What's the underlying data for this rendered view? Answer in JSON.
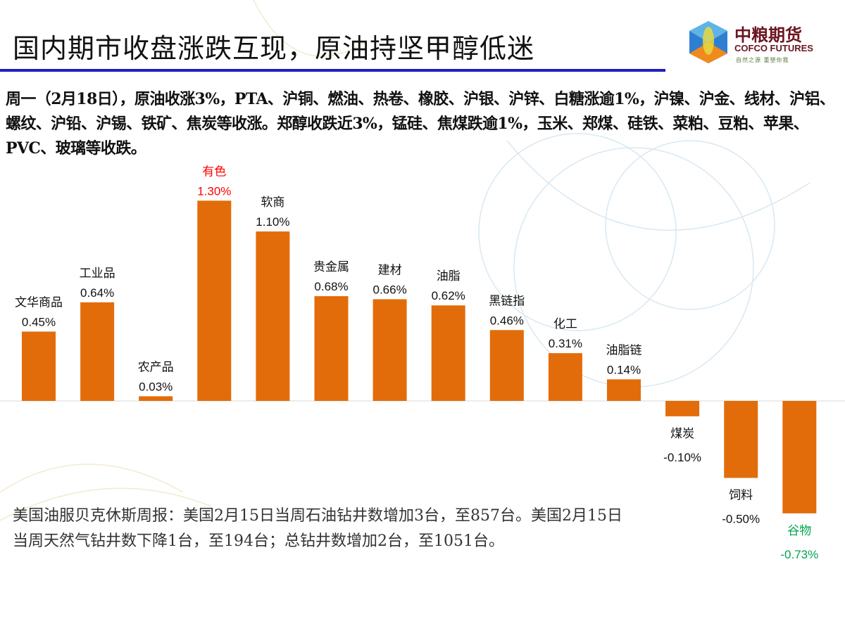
{
  "header": {
    "title": "国内期市收盘涨跌互现，原油持坚甲醇低迷",
    "logo_cn": "中粮期货",
    "logo_en": "COFCO FUTURES",
    "logo_slogan": "自然之源 重塑你我"
  },
  "summary": "周一（2月18日），原油收涨3%，PTA、沪铜、燃油、热卷、橡胶、沪银、沪锌、白糖涨逾1%，沪镍、沪金、线材、沪铝、螺纹、沪铅、沪锡、铁矿、焦炭等收涨。郑醇收跌近3%，锰硅、焦煤跌逾1%，玉米、郑煤、硅铁、菜粕、豆粕、苹果、PVC、玻璃等收跌。",
  "note": "美国油服贝克休斯周报：美国2月15日当周石油钻井数增加3台，至857台。美国2月15日当周天然气钻井数下降1台，至194台；总钻井数增加2台，至1051台。",
  "chart_data": {
    "type": "bar",
    "categories": [
      "文华商品",
      "工业品",
      "农产品",
      "有色",
      "软商",
      "贵金属",
      "建材",
      "油脂",
      "黑链指",
      "化工",
      "油脂链",
      "煤炭",
      "饲料",
      "谷物"
    ],
    "values": [
      0.45,
      0.64,
      0.03,
      1.3,
      1.1,
      0.68,
      0.66,
      0.62,
      0.46,
      0.31,
      0.14,
      -0.1,
      -0.5,
      -0.73
    ],
    "value_labels": [
      "0.45%",
      "0.64%",
      "0.03%",
      "1.30%",
      "1.10%",
      "0.68%",
      "0.66%",
      "0.62%",
      "0.46%",
      "0.31%",
      "0.14%",
      "-0.10%",
      "-0.50%",
      "-0.73%"
    ],
    "unit": "%",
    "bar_color": "#e36c0a",
    "highlight_colors": {
      "有色": "#ff0000",
      "谷物": "#00a651"
    },
    "default_label_color": "#111111",
    "axes_visible": false,
    "grid": false
  }
}
